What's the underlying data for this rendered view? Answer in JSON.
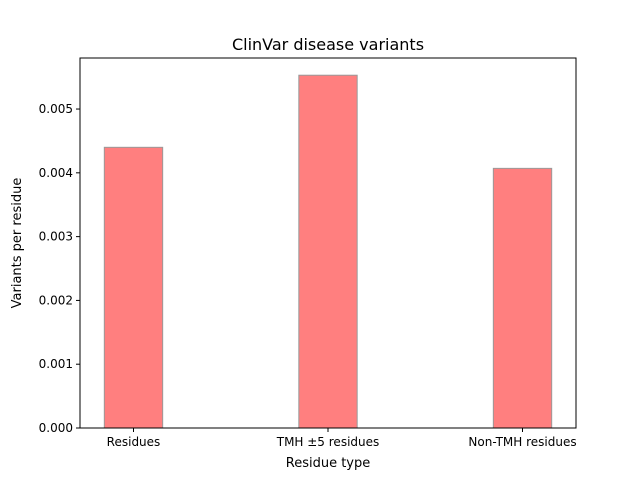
{
  "chart_data": {
    "type": "bar",
    "title": "ClinVar disease variants",
    "xlabel": "Residue type",
    "ylabel": "Variants per residue",
    "categories": [
      "Residues",
      "TMH ±5 residues",
      "Non-TMH residues"
    ],
    "values": [
      0.0044,
      0.00553,
      0.00407
    ],
    "ylim": [
      0,
      0.0058
    ],
    "yticks": [
      0.0,
      0.001,
      0.002,
      0.003,
      0.004,
      0.005
    ],
    "ytick_labels": [
      "0.000",
      "0.001",
      "0.002",
      "0.003",
      "0.004",
      "0.005"
    ],
    "grid": false,
    "legend": "none",
    "bar_color": "#ff7f7f",
    "bar_edge_color": "#999999"
  }
}
